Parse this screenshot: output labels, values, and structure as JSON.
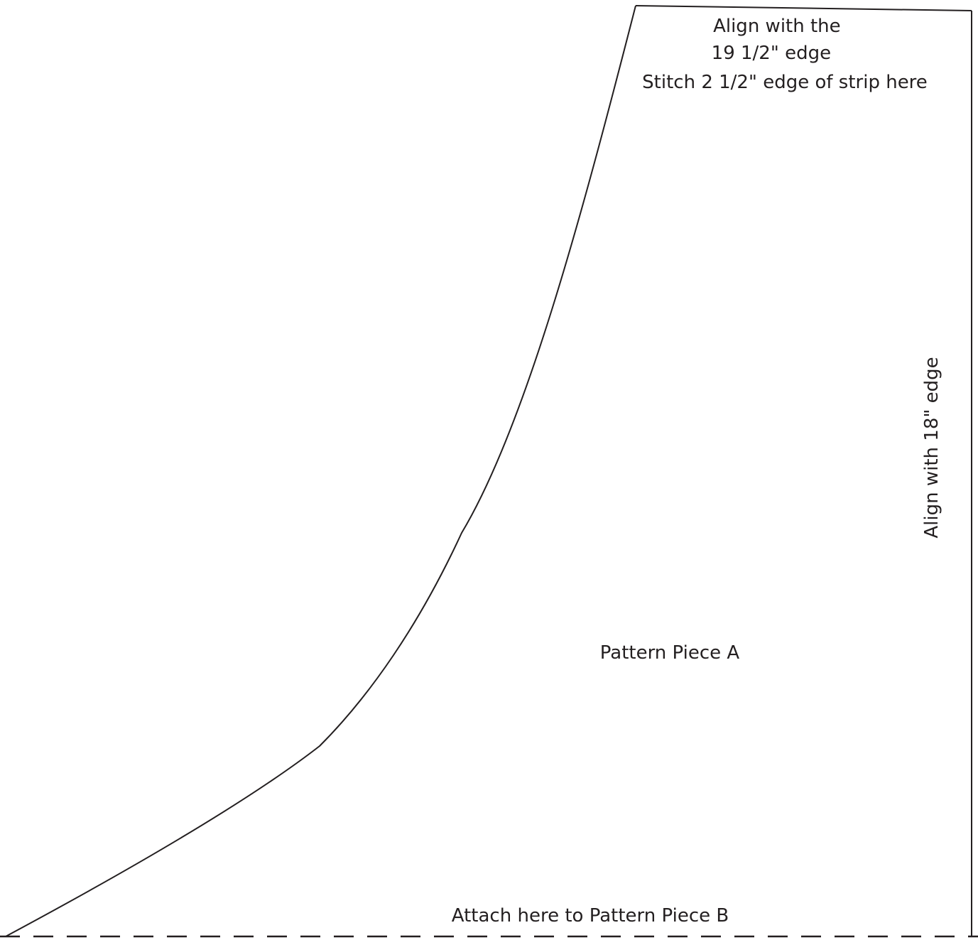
{
  "pattern": {
    "top_note": {
      "line1": "Align with the",
      "line2": "19 1/2\" edge",
      "line3": "Stitch 2 1/2\" edge of strip here"
    },
    "side_note": "Align with 18\" edge",
    "piece_label": "Pattern Piece A",
    "bottom_note": "Attach here to Pattern Piece B",
    "colors": {
      "outline": "#231f20",
      "background": "#ffffff"
    }
  }
}
